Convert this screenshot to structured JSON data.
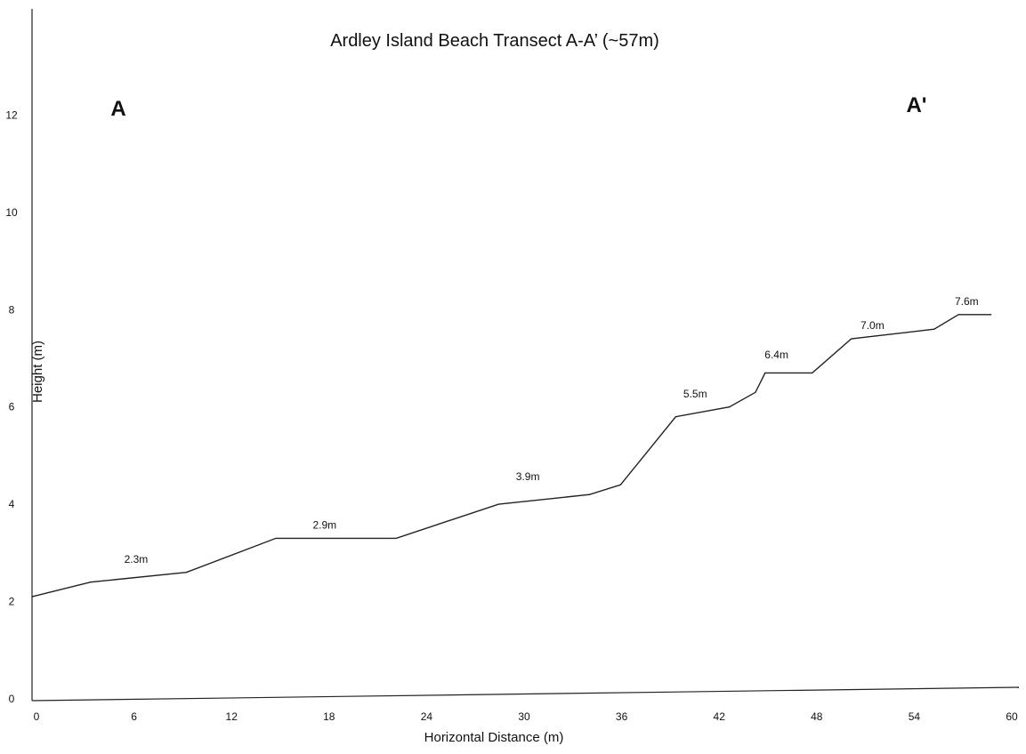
{
  "chart_data": {
    "type": "line",
    "title": "Ardley Island Beach Transect A-A’ (~57m)",
    "xlabel": "Horizontal Distance (m)",
    "ylabel": "Height  (m)",
    "xlim": [
      0,
      60
    ],
    "ylim": [
      0,
      14
    ],
    "xticks": [
      "0",
      "6",
      "12",
      "18",
      "24",
      "30",
      "36",
      "42",
      "48",
      "54",
      "60"
    ],
    "yticks": [
      "0",
      "2",
      "4",
      "6",
      "8",
      "10",
      "12"
    ],
    "grid": false,
    "series": [
      {
        "x": [
          0,
          3.6,
          9.5,
          15,
          22.4,
          28.7,
          34.3,
          36.2,
          39.6,
          42.9,
          44.5,
          45.1,
          48.0,
          50.4,
          55.5,
          57.0,
          59.0
        ],
        "y": [
          2.1,
          2.4,
          2.6,
          3.3,
          3.3,
          4.0,
          4.2,
          4.4,
          5.8,
          6.0,
          6.3,
          6.7,
          6.7,
          7.4,
          7.6,
          7.9,
          7.9
        ]
      }
    ],
    "annotations": [
      {
        "text": "2.3m",
        "x": 6.4,
        "y": 2.8
      },
      {
        "text": "2.9m",
        "x": 18.0,
        "y": 3.5
      },
      {
        "text": "3.9m",
        "x": 30.5,
        "y": 4.5
      },
      {
        "text": "5.5m",
        "x": 40.8,
        "y": 6.2
      },
      {
        "text": "6.4m",
        "x": 45.8,
        "y": 7.0
      },
      {
        "text": "7.0m",
        "x": 51.7,
        "y": 7.6
      },
      {
        "text": "7.6m",
        "x": 57.5,
        "y": 8.1
      }
    ],
    "end_labels": {
      "left": "A",
      "right": "A'"
    }
  }
}
